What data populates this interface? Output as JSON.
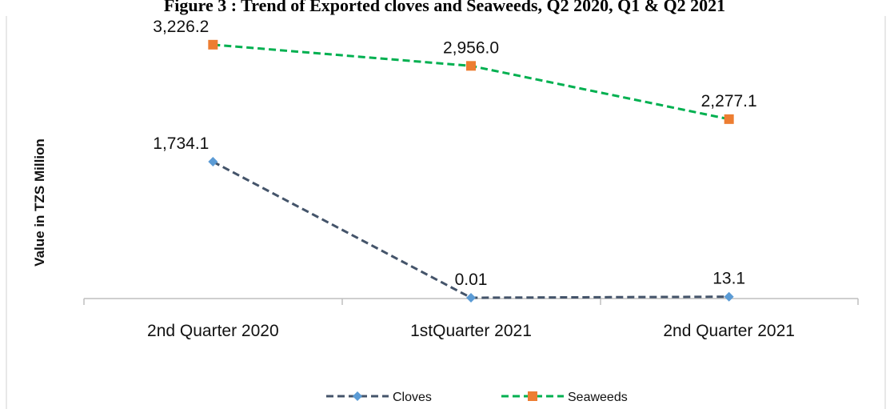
{
  "chart_data": {
    "type": "line",
    "title": "Figure 3 : Trend of Exported cloves and Seaweeds, Q2 2020, Q1 & Q2 2021",
    "ylabel": "Value in TZS Million",
    "xlabel": "",
    "categories": [
      "2nd Quarter 2020",
      "1stQuarter 2021",
      "2nd Quarter 2021"
    ],
    "ylim": [
      0,
      3300
    ],
    "grid": false,
    "legend_position": "bottom",
    "series": [
      {
        "name": "Cloves",
        "values": [
          1734.1,
          0.01,
          13.1
        ],
        "labels": [
          "1,734.1",
          "0.01",
          "13.1"
        ],
        "color": "#44546a",
        "marker_color": "#5b9bd5",
        "marker": "diamond"
      },
      {
        "name": "Seaweeds",
        "values": [
          3226.2,
          2956.0,
          2277.1
        ],
        "labels": [
          "3,226.2",
          "2,956.0",
          "2,277.1"
        ],
        "color": "#00b050",
        "marker_color": "#ed7d31",
        "marker": "square"
      }
    ]
  }
}
